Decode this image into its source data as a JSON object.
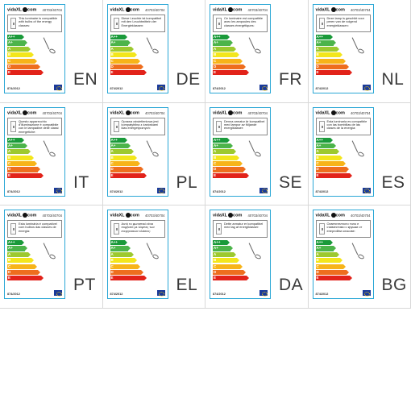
{
  "brand": "vidaXL",
  "brand_suffix": "com",
  "article_number": "40703/40704",
  "regulation": "874/2012",
  "energy_classes": [
    "A++",
    "A+",
    "A",
    "B",
    "C",
    "D",
    "E"
  ],
  "class_colors": [
    "#1a9a3a",
    "#4cb44a",
    "#9dc92f",
    "#f3e61c",
    "#f7b419",
    "#ee6e1e",
    "#e2231a"
  ],
  "cells": [
    {
      "lang": "EN",
      "text": "This luminaire is compatible with bulbs of the energy classes:"
    },
    {
      "lang": "DE",
      "text": "Diese Leuchte ist kompatibel mit den Leuchtmitteln der Energieklassen:"
    },
    {
      "lang": "FR",
      "text": "Ce luminaire est compatible avec les ampoules des classes énergétiques:"
    },
    {
      "lang": "NL",
      "text": "Deze lamp is geschikt voor peren van de volgend energieklassen:"
    },
    {
      "lang": "IT",
      "text": "Questo apparecchio d'illuminazione è compatibile con le lampadine delle classi energetiche:"
    },
    {
      "lang": "PL",
      "text": "Oprawa oświetleniowa jest kompatybilna z żarówkami klas energetycznych:"
    },
    {
      "lang": "SE",
      "text": "Denna armatur är kompatibel med lampor av följande energiklasser:"
    },
    {
      "lang": "ES",
      "text": "Esta luminaria es compatible con las bombillas de las clases de la energía:"
    },
    {
      "lang": "PT",
      "text": "Esta luminária é compatível com bulbos das classes de energia:"
    },
    {
      "lang": "EL",
      "text": "Αυτό το φωτιστικό είναι συμβατό με λάμπες των ενεργειακών κλάσεις:"
    },
    {
      "lang": "DA",
      "text": "Dette armatur er kompatibel med lag af energiklasser:"
    },
    {
      "lang": "BG",
      "text": "Осветителното тяло е съвместимо с крушки от енергийни класове:"
    }
  ]
}
